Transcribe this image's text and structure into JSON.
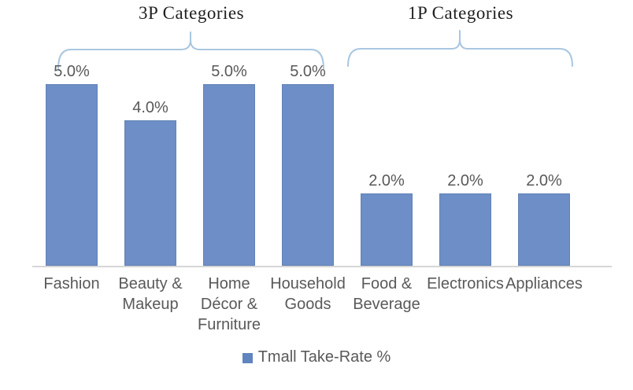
{
  "chart_data": {
    "type": "bar",
    "title": "",
    "xlabel": "",
    "ylabel": "",
    "ylim": [
      0,
      5
    ],
    "grid": false,
    "legend_position": "bottom",
    "categories": [
      "Fashion",
      "Beauty &\nMakeup",
      "Home\nDécor &\nFurniture",
      "Household\nGoods",
      "Food &\nBeverage",
      "Electronics",
      "Appliances"
    ],
    "series": [
      {
        "name": "Tmall Take-Rate %",
        "values": [
          5.0,
          4.0,
          5.0,
          5.0,
          2.0,
          2.0,
          2.0
        ]
      }
    ],
    "data_labels": [
      "5.0%",
      "4.0%",
      "5.0%",
      "5.0%",
      "2.0%",
      "2.0%",
      "2.0%"
    ],
    "group_annotations": [
      {
        "label": "3P Categories",
        "categories_spanned": [
          "Fashion",
          "Beauty & Makeup",
          "Home Décor & Furniture",
          "Household Goods"
        ]
      },
      {
        "label": "1P Categories",
        "categories_spanned": [
          "Food & Beverage",
          "Electronics",
          "Appliances"
        ]
      }
    ]
  },
  "annotations": {
    "left_group_title": "3P Categories",
    "right_group_title": "1P Categories"
  },
  "legend": {
    "label": "Tmall Take-Rate %"
  },
  "colors": {
    "bar": "#6d8ec6",
    "bar_border": "#6483b6",
    "legend_marker": "#5f84be",
    "brace": "#a9c6e0",
    "axis_line": "#d6d6d6",
    "text_gray": "#595959",
    "title_text": "#1f1f1f"
  }
}
